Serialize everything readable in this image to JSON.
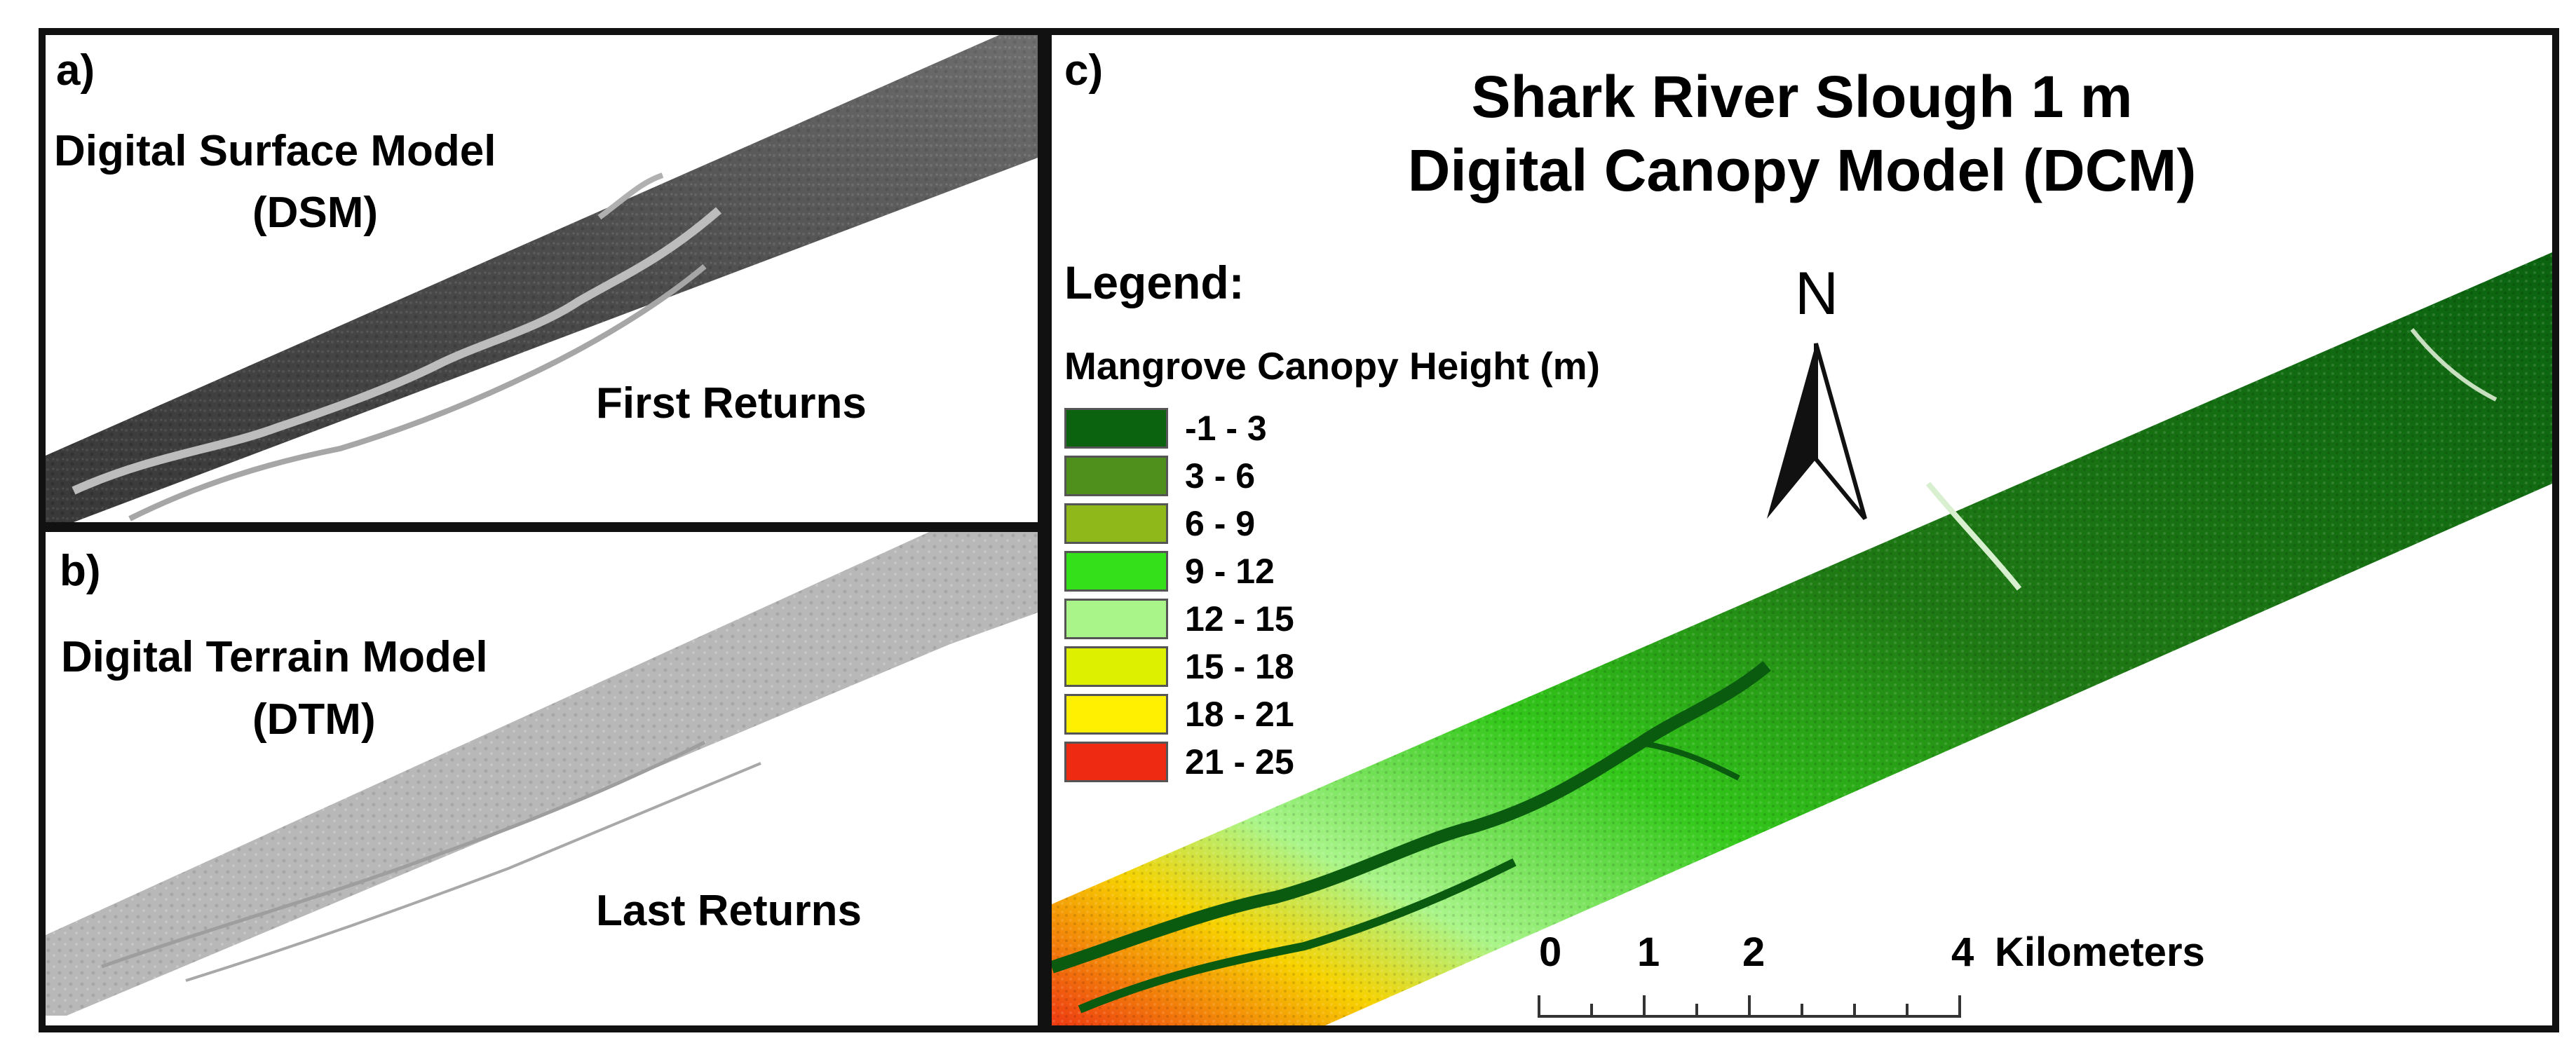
{
  "panels": {
    "a": {
      "tag": "a)",
      "title_line1": "Digital Surface Model",
      "title_line2": "(DSM)",
      "caption": "First Returns"
    },
    "b": {
      "tag": "b)",
      "title_line1": "Digital Terrain Model",
      "title_line2": "(DTM)",
      "caption": "Last Returns"
    },
    "c": {
      "tag": "c)",
      "title_line1": "Shark River Slough 1 m",
      "title_line2": "Digital Canopy Model (DCM)",
      "north_label": "N",
      "legend": {
        "heading": "Legend:",
        "subheading": "Mangrove Canopy Height (m)",
        "classes": [
          {
            "label": "-1 - 3",
            "color": "#0b6310"
          },
          {
            "label": "3 - 6",
            "color": "#4f8f1c"
          },
          {
            "label": "6 - 9",
            "color": "#8fb91a"
          },
          {
            "label": "9 - 12",
            "color": "#33e01a"
          },
          {
            "label": "12 - 15",
            "color": "#a9f58a"
          },
          {
            "label": "15 - 18",
            "color": "#dcf000"
          },
          {
            "label": "18 - 21",
            "color": "#ffef00"
          },
          {
            "label": "21 - 25",
            "color": "#ee2a12"
          }
        ]
      },
      "scale_bar": {
        "ticks": [
          "0",
          "1",
          "2",
          "4"
        ],
        "unit": "Kilometers"
      }
    }
  }
}
